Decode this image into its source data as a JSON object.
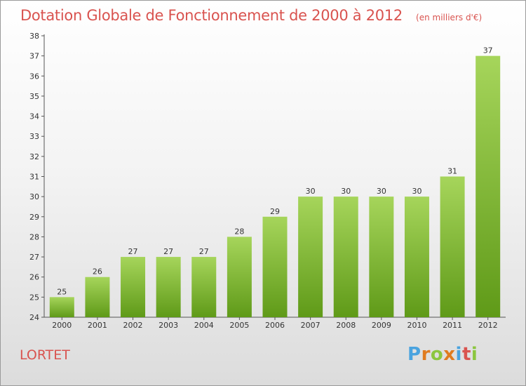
{
  "header": {
    "title": "Dotation Globale de Fonctionnement de 2000 à 2012",
    "subtitle": "(en milliers d'€)"
  },
  "footer": {
    "location": "LORTET",
    "logo_text": "Proxiti"
  },
  "colors": {
    "title": "#d9534f",
    "bar_light": "#a6d55b",
    "bar_dark": "#5f9a18",
    "axis": "#555555",
    "grid": "#cfcfcf",
    "logo": [
      "#4aa3df",
      "#e07b1f",
      "#8cc63f",
      "#e07b1f",
      "#4aa3df",
      "#d9534f",
      "#8cc63f"
    ]
  },
  "chart_data": {
    "type": "bar",
    "title": "Dotation Globale de Fonctionnement de 2000 à 2012",
    "subtitle": "(en milliers d'€)",
    "categories": [
      "2000",
      "2001",
      "2002",
      "2003",
      "2004",
      "2005",
      "2006",
      "2007",
      "2008",
      "2009",
      "2010",
      "2011",
      "2012"
    ],
    "values": [
      25,
      26,
      27,
      27,
      27,
      28,
      29,
      30,
      30,
      30,
      30,
      31,
      37
    ],
    "ylim": [
      24,
      38
    ],
    "yticks": [
      24,
      25,
      26,
      27,
      28,
      29,
      30,
      31,
      32,
      33,
      34,
      35,
      36,
      37,
      38
    ],
    "grid": false,
    "data_labels": true
  }
}
